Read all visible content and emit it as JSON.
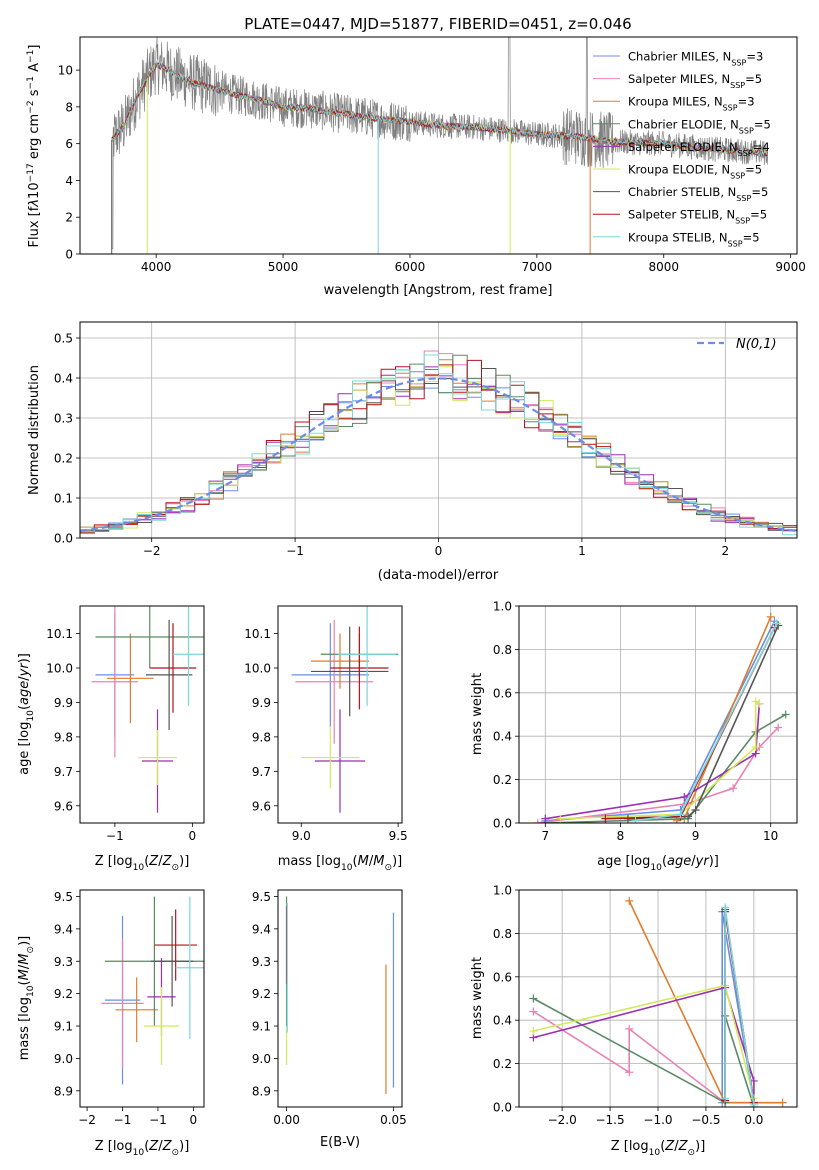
{
  "colors": {
    "Chabrier MILES": "#6a8ee8",
    "Salpeter MILES": "#e882b4",
    "Kroupa MILES": "#e07c2c",
    "Chabrier ELODIE": "#5a8a64",
    "Salpeter ELODIE": "#9a2fb4",
    "Kroupa ELODIE": "#d4e85c",
    "Chabrier STELIB": "#555555",
    "Salpeter STELIB": "#b3141c",
    "Kroupa STELIB": "#7ad8dc"
  },
  "chart_data": [
    {
      "id": "spectrum",
      "type": "line",
      "title": "PLATE=0447, MJD=51877, FIBERID=0451, z=0.046",
      "xlabel": "wavelength [Angstrom, rest frame]",
      "ylabel": "Flux [f_λ10^-17 erg cm^-2 s^-1 A^-1]",
      "xlim": [
        3400,
        9050
      ],
      "ylim": [
        0,
        11.8
      ],
      "xticks": [
        4000,
        5000,
        6000,
        7000,
        8000,
        9000
      ],
      "yticks": [
        0,
        2,
        4,
        6,
        8,
        10
      ],
      "legend_position": "top-right",
      "legend": [
        {
          "model": "Chabrier MILES",
          "nssp": "3"
        },
        {
          "model": "Salpeter MILES",
          "nssp": "5"
        },
        {
          "model": "Kroupa MILES",
          "nssp": "3"
        },
        {
          "model": "Chabrier ELODIE",
          "nssp": "5"
        },
        {
          "model": "Salpeter ELODIE",
          "nssp": "4"
        },
        {
          "model": "Kroupa ELODIE",
          "nssp": "5"
        },
        {
          "model": "Chabrier STELIB",
          "nssp": "5"
        },
        {
          "model": "Salpeter STELIB",
          "nssp": "5"
        },
        {
          "model": "Kroupa STELIB",
          "nssp": "5"
        }
      ],
      "continuum": {
        "x": [
          3650,
          3750,
          3850,
          3950,
          4000,
          4100,
          4200,
          4300,
          4400,
          4600,
          4800,
          5000,
          5200,
          5500,
          5800,
          6000,
          6200,
          6500,
          6800,
          7000,
          7300,
          7600,
          8000,
          8400,
          8800
        ],
        "y": [
          6.2,
          7.0,
          8.6,
          9.8,
          10.3,
          10.0,
          9.6,
          9.3,
          9.1,
          8.7,
          8.4,
          8.0,
          7.9,
          7.6,
          7.3,
          7.2,
          7.0,
          6.9,
          6.7,
          6.5,
          6.4,
          6.1,
          6.0,
          5.7,
          5.5
        ]
      },
      "absorption_dips": [
        {
          "x": 3650,
          "y": 0
        },
        {
          "x": 3930,
          "y": 0
        },
        {
          "x": 5750,
          "y": 0
        },
        {
          "x": 6790,
          "y": 0
        },
        {
          "x": 7420,
          "y": 0
        }
      ]
    },
    {
      "id": "residuals",
      "type": "histogram",
      "xlabel": "(data-model)/error",
      "ylabel": "Normed distribution",
      "xlim": [
        -2.5,
        2.5
      ],
      "ylim": [
        0,
        0.54
      ],
      "xticks": [
        -2,
        -1,
        0,
        1,
        2
      ],
      "yticks": [
        0.0,
        0.1,
        0.2,
        0.3,
        0.4,
        0.5
      ],
      "legend_position": "top-right",
      "legend_label": "N(0,1)",
      "bin_width": 0.1
    },
    {
      "id": "age-vs-Z",
      "type": "errorbar",
      "xlabel": "Z [log10(Z/Z⊙)]",
      "ylabel": "age  [log10(age/yr)]",
      "xlim": [
        -1.45,
        0.15
      ],
      "ylim": [
        9.55,
        10.18
      ],
      "xticks": [
        -1,
        0
      ],
      "yticks": [
        9.6,
        9.7,
        9.8,
        9.9,
        10.0,
        10.1
      ],
      "points": [
        {
          "model": "Chabrier MILES",
          "x": -1.0,
          "xerr": 0.25,
          "y": 9.98,
          "yerr": 0.18
        },
        {
          "model": "Salpeter MILES",
          "x": -1.0,
          "xerr": 0.3,
          "y": 9.96,
          "yerr": 0.22
        },
        {
          "model": "Kroupa MILES",
          "x": -0.8,
          "xerr": 0.3,
          "y": 9.97,
          "yerr": 0.13
        },
        {
          "model": "Chabrier ELODIE",
          "x": -0.55,
          "xerr": 0.7,
          "y": 10.09,
          "yerr": 0.09
        },
        {
          "model": "Salpeter ELODIE",
          "x": -0.45,
          "xerr": 0.2,
          "y": 9.73,
          "yerr": 0.15
        },
        {
          "model": "Kroupa ELODIE",
          "x": -0.45,
          "xerr": 0.25,
          "y": 9.74,
          "yerr": 0.08
        },
        {
          "model": "Chabrier STELIB",
          "x": -0.3,
          "xerr": 0.3,
          "y": 9.98,
          "yerr": 0.16
        },
        {
          "model": "Salpeter STELIB",
          "x": -0.25,
          "xerr": 0.3,
          "y": 10.0,
          "yerr": 0.13
        },
        {
          "model": "Kroupa STELIB",
          "x": -0.05,
          "xerr": 0.2,
          "y": 10.04,
          "yerr": 0.15
        }
      ]
    },
    {
      "id": "age-vs-mass",
      "type": "errorbar",
      "xlabel": "mass [log10(M/M⊙)]",
      "ylabel": "",
      "xlim": [
        8.88,
        9.52
      ],
      "ylim": [
        9.55,
        10.18
      ],
      "xticks": [
        9.0,
        9.5
      ],
      "yticks": [
        9.6,
        9.7,
        9.8,
        9.9,
        10.0,
        10.1
      ],
      "points": [
        {
          "model": "Chabrier MILES",
          "x": 9.15,
          "xerr": 0.2,
          "y": 9.98,
          "yerr": 0.15
        },
        {
          "model": "Salpeter MILES",
          "x": 9.17,
          "xerr": 0.2,
          "y": 9.96,
          "yerr": 0.18
        },
        {
          "model": "Kroupa MILES",
          "x": 9.2,
          "xerr": 0.15,
          "y": 10.02,
          "yerr": 0.08
        },
        {
          "model": "Chabrier ELODIE",
          "x": 9.3,
          "xerr": 0.2,
          "y": 10.04,
          "yerr": 0.06
        },
        {
          "model": "Salpeter ELODIE",
          "x": 9.2,
          "xerr": 0.13,
          "y": 9.73,
          "yerr": 0.15
        },
        {
          "model": "Kroupa ELODIE",
          "x": 9.15,
          "xerr": 0.15,
          "y": 9.74,
          "yerr": 0.09
        },
        {
          "model": "Chabrier STELIB",
          "x": 9.25,
          "xerr": 0.2,
          "y": 9.99,
          "yerr": 0.13
        },
        {
          "model": "Salpeter STELIB",
          "x": 9.3,
          "xerr": 0.15,
          "y": 10.0,
          "yerr": 0.12
        },
        {
          "model": "Kroupa STELIB",
          "x": 9.34,
          "xerr": 0.15,
          "y": 10.04,
          "yerr": 0.15
        }
      ]
    },
    {
      "id": "massweight-vs-age",
      "type": "line",
      "xlabel": "age  [log10(age/yr)]",
      "ylabel": "mass weight",
      "xlim": [
        6.65,
        10.35
      ],
      "ylim": [
        0,
        1.0
      ],
      "xticks": [
        7,
        8,
        9,
        10
      ],
      "yticks": [
        0.0,
        0.2,
        0.4,
        0.6,
        0.8,
        1.0
      ],
      "series": [
        {
          "model": "Chabrier MILES",
          "x": [
            7.0,
            8.8,
            10.05
          ],
          "y": [
            0.01,
            0.06,
            0.93
          ]
        },
        {
          "model": "Salpeter MILES",
          "x": [
            6.9,
            8.9,
            9.5,
            9.85,
            10.1
          ],
          "y": [
            0.0,
            0.09,
            0.16,
            0.35,
            0.44
          ]
        },
        {
          "model": "Kroupa MILES",
          "x": [
            8.75,
            8.85,
            10.0
          ],
          "y": [
            0.01,
            0.02,
            0.95
          ]
        },
        {
          "model": "Chabrier ELODIE",
          "x": [
            7.0,
            8.9,
            9.8,
            10.2
          ],
          "y": [
            0.0,
            0.02,
            0.42,
            0.5
          ]
        },
        {
          "model": "Salpeter ELODIE",
          "x": [
            7.0,
            8.85,
            9.8,
            9.85
          ],
          "y": [
            0.02,
            0.12,
            0.32,
            0.55
          ]
        },
        {
          "model": "Kroupa ELODIE",
          "x": [
            7.2,
            8.8,
            9.8,
            9.8,
            9.85
          ],
          "y": [
            0.02,
            0.04,
            0.35,
            0.56,
            0.55
          ]
        },
        {
          "model": "Chabrier STELIB",
          "x": [
            8.1,
            8.9,
            9.0,
            10.1
          ],
          "y": [
            0.02,
            0.03,
            0.06,
            0.91
          ]
        },
        {
          "model": "Salpeter STELIB",
          "x": [
            7.8,
            8.8,
            10.05
          ],
          "y": [
            0.02,
            0.03,
            0.9
          ]
        },
        {
          "model": "Kroupa STELIB",
          "x": [
            8.2,
            8.8,
            10.08
          ],
          "y": [
            0.01,
            0.04,
            0.92
          ]
        }
      ]
    },
    {
      "id": "mass-vs-Z",
      "type": "errorbar",
      "xlabel": "Z [log10(Z/Z⊙)]",
      "ylabel": "mass [log10(M/M⊙)]",
      "xlim": [
        -1.6,
        0.15
      ],
      "ylim": [
        8.85,
        9.52
      ],
      "xticks": [
        -1.5,
        -1.0,
        -0.5,
        0.0
      ],
      "yticks": [
        8.9,
        9.0,
        9.1,
        9.2,
        9.3,
        9.4,
        9.5
      ],
      "points": [
        {
          "model": "Chabrier MILES",
          "x": -1.0,
          "xerr": 0.25,
          "y": 9.18,
          "yerr": 0.26
        },
        {
          "model": "Salpeter MILES",
          "x": -1.0,
          "xerr": 0.3,
          "y": 9.17,
          "yerr": 0.2
        },
        {
          "model": "Kroupa MILES",
          "x": -0.8,
          "xerr": 0.3,
          "y": 9.15,
          "yerr": 0.1
        },
        {
          "model": "Chabrier ELODIE",
          "x": -0.55,
          "xerr": 0.7,
          "y": 9.3,
          "yerr": 0.2
        },
        {
          "model": "Salpeter ELODIE",
          "x": -0.45,
          "xerr": 0.2,
          "y": 9.19,
          "yerr": 0.12
        },
        {
          "model": "Kroupa ELODIE",
          "x": -0.45,
          "xerr": 0.25,
          "y": 9.1,
          "yerr": 0.12
        },
        {
          "model": "Chabrier STELIB",
          "x": -0.3,
          "xerr": 0.3,
          "y": 9.3,
          "yerr": 0.14
        },
        {
          "model": "Salpeter STELIB",
          "x": -0.25,
          "xerr": 0.3,
          "y": 9.35,
          "yerr": 0.11
        },
        {
          "model": "Kroupa STELIB",
          "x": -0.05,
          "xerr": 0.2,
          "y": 9.28,
          "yerr": 0.22
        }
      ]
    },
    {
      "id": "mass-vs-ebv",
      "type": "errorbar",
      "xlabel": "E(B-V)",
      "ylabel": "",
      "xlim": [
        -0.004,
        0.054
      ],
      "ylim": [
        8.85,
        9.52
      ],
      "xticks": [
        0.0,
        0.05
      ],
      "yticks": [
        8.9,
        9.0,
        9.1,
        9.2,
        9.3,
        9.4,
        9.5
      ],
      "points": [
        {
          "model": "Chabrier MILES",
          "x": 0.05,
          "xerr": 0,
          "y": 9.18,
          "yerr": 0.27
        },
        {
          "model": "Kroupa MILES",
          "x": 0.0465,
          "xerr": 0,
          "y": 9.09,
          "yerr": 0.2
        },
        {
          "model": "Kroupa ELODIE",
          "x": 0.0,
          "xerr": 0,
          "y": 9.1,
          "yerr": 0.12
        },
        {
          "model": "Chabrier ELODIE",
          "x": 0.0,
          "xerr": 0,
          "y": 9.3,
          "yerr": 0.2
        },
        {
          "model": "Salpeter STELIB",
          "x": 0.0,
          "xerr": 0,
          "y": 9.35,
          "yerr": 0.12
        },
        {
          "model": "Kroupa STELIB",
          "x": 0.0003,
          "xerr": 0,
          "y": 9.28,
          "yerr": 0.2
        }
      ]
    },
    {
      "id": "massweight-vs-Z",
      "type": "line",
      "xlabel": "Z [log10(Z/Z⊙)]",
      "ylabel": "mass weight",
      "xlim": [
        -2.45,
        0.45
      ],
      "ylim": [
        0,
        1.0
      ],
      "xticks": [
        -2.0,
        -1.5,
        -1.0,
        -0.5,
        0.0
      ],
      "yticks": [
        0.0,
        0.2,
        0.4,
        0.6,
        0.8,
        1.0
      ],
      "series": [
        {
          "model": "Chabrier MILES",
          "x": [
            -0.33,
            -0.33,
            0.0
          ],
          "y": [
            0.02,
            0.9,
            0.02
          ]
        },
        {
          "model": "Salpeter MILES",
          "x": [
            -2.3,
            -1.3,
            -1.3,
            -0.3,
            0.0
          ],
          "y": [
            0.44,
            0.16,
            0.36,
            0.02,
            0.02
          ]
        },
        {
          "model": "Kroupa MILES",
          "x": [
            -1.3,
            -0.3,
            0.3
          ],
          "y": [
            0.95,
            0.02,
            0.02
          ]
        },
        {
          "model": "Chabrier ELODIE",
          "x": [
            -2.3,
            -0.3,
            -0.3,
            0.0
          ],
          "y": [
            0.5,
            0.02,
            0.42,
            0.0
          ]
        },
        {
          "model": "Salpeter ELODIE",
          "x": [
            -2.3,
            -0.3,
            0.0,
            0.0
          ],
          "y": [
            0.32,
            0.55,
            0.12,
            0.02
          ]
        },
        {
          "model": "Kroupa ELODIE",
          "x": [
            -2.3,
            -0.3,
            0.0,
            0.0
          ],
          "y": [
            0.35,
            0.56,
            0.04,
            0.02
          ]
        },
        {
          "model": "Chabrier STELIB",
          "x": [
            -0.3,
            -0.3,
            0.0
          ],
          "y": [
            0.03,
            0.91,
            0.02
          ]
        },
        {
          "model": "Salpeter STELIB",
          "x": [
            -0.3,
            -0.3,
            0.0
          ],
          "y": [
            0.03,
            0.9,
            0.02
          ]
        },
        {
          "model": "Kroupa STELIB",
          "x": [
            -0.3,
            -0.3,
            0.0
          ],
          "y": [
            0.04,
            0.92,
            0.01
          ]
        }
      ]
    }
  ]
}
